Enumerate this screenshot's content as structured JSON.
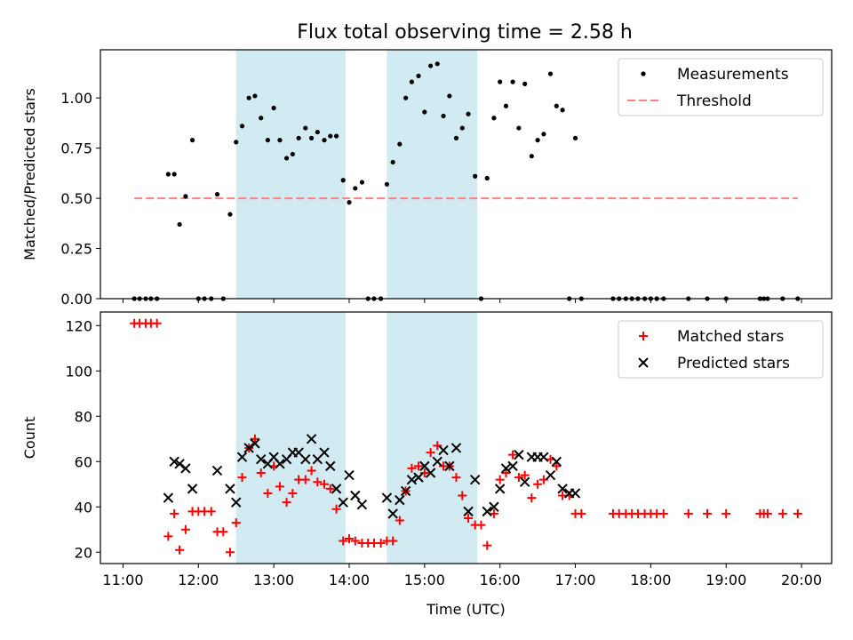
{
  "figure": {
    "title": "Flux total observing time = 2.58 h"
  },
  "chart_data": [
    {
      "type": "scatter",
      "panel": "top",
      "ylabel": "Matched/Predicted stars",
      "xlabel": "",
      "x_unit": "hours (UTC)",
      "xlim": [
        10.7,
        20.4
      ],
      "ylim": [
        0.0,
        1.24
      ],
      "yticks": [
        0.0,
        0.25,
        0.5,
        0.75,
        1.0
      ],
      "ytick_labels": [
        "0.00",
        "0.25",
        "0.50",
        "0.75",
        "1.00"
      ],
      "legend": {
        "placement": "top-right",
        "entries": [
          "Measurements",
          "Threshold"
        ]
      },
      "shaded_spans": [
        [
          12.5,
          13.95
        ],
        [
          14.5,
          15.7
        ]
      ],
      "span_color": "#add8e6",
      "threshold": {
        "name": "Threshold",
        "value": 0.5,
        "x_range": [
          11.15,
          19.95
        ],
        "color": "#ff7f7f",
        "style": "dashed"
      },
      "series": [
        {
          "name": "Measurements",
          "color": "#000000",
          "marker": "dot",
          "x": [
            11.15,
            11.22,
            11.3,
            11.37,
            11.45,
            11.6,
            11.68,
            11.75,
            11.83,
            11.92,
            12.0,
            12.08,
            12.17,
            12.25,
            12.33,
            12.42,
            12.5,
            12.58,
            12.67,
            12.75,
            12.83,
            12.92,
            13.0,
            13.08,
            13.17,
            13.25,
            13.33,
            13.42,
            13.5,
            13.58,
            13.67,
            13.75,
            13.83,
            13.92,
            14.0,
            14.08,
            14.17,
            14.25,
            14.33,
            14.42,
            14.5,
            14.58,
            14.67,
            14.75,
            14.83,
            14.92,
            15.0,
            15.08,
            15.17,
            15.25,
            15.33,
            15.42,
            15.5,
            15.58,
            15.67,
            15.75,
            15.83,
            15.92,
            16.0,
            16.08,
            16.17,
            16.25,
            16.33,
            16.42,
            16.5,
            16.58,
            16.67,
            16.75,
            16.83,
            16.92,
            17.0,
            17.08,
            17.5,
            17.58,
            17.67,
            17.75,
            17.83,
            17.92,
            18.0,
            18.08,
            18.17,
            18.5,
            18.75,
            19.0,
            19.45,
            19.5,
            19.55,
            19.75,
            19.95
          ],
          "y": [
            0,
            0,
            0,
            0,
            0,
            0.62,
            0.62,
            0.37,
            0.51,
            0.79,
            0,
            0,
            0,
            0.52,
            0,
            0.42,
            0.78,
            0.86,
            1.0,
            1.01,
            0.9,
            0.79,
            0.95,
            0.79,
            0.7,
            0.72,
            0.8,
            0.85,
            0.8,
            0.83,
            0.79,
            0.81,
            0.81,
            0.59,
            0.48,
            0.55,
            0.58,
            0,
            0,
            0,
            0.57,
            0.68,
            0.77,
            1.0,
            1.08,
            1.11,
            0.93,
            1.16,
            1.17,
            0.91,
            1.01,
            0.8,
            0.85,
            0.92,
            0.61,
            0,
            0.6,
            0.9,
            1.08,
            0.96,
            1.08,
            0.85,
            1.07,
            0.71,
            0.79,
            0.82,
            1.12,
            0.96,
            0.94,
            0,
            0.8,
            0,
            0,
            0,
            0,
            0,
            0,
            0,
            0,
            0,
            0,
            0,
            0,
            0,
            0,
            0,
            0,
            0,
            0
          ]
        }
      ]
    },
    {
      "type": "scatter",
      "panel": "bottom",
      "ylabel": "Count",
      "xlabel": "Time (UTC)",
      "x_unit": "hours (UTC)",
      "xlim": [
        10.7,
        20.4
      ],
      "ylim": [
        15,
        126
      ],
      "yticks": [
        20,
        40,
        60,
        80,
        100,
        120
      ],
      "ytick_labels": [
        "20",
        "40",
        "60",
        "80",
        "100",
        "120"
      ],
      "xticks": [
        11,
        12,
        13,
        14,
        15,
        16,
        17,
        18,
        19,
        20
      ],
      "xtick_labels": [
        "11:00",
        "12:00",
        "13:00",
        "14:00",
        "15:00",
        "16:00",
        "17:00",
        "18:00",
        "19:00",
        "20:00"
      ],
      "legend": {
        "placement": "top-right",
        "entries": [
          "Matched stars",
          "Predicted stars"
        ]
      },
      "shaded_spans": [
        [
          12.5,
          13.95
        ],
        [
          14.5,
          15.7
        ]
      ],
      "span_color": "#add8e6",
      "series": [
        {
          "name": "Matched stars",
          "color": "#ff0000",
          "marker": "plus",
          "x": [
            11.15,
            11.22,
            11.3,
            11.37,
            11.45,
            11.6,
            11.68,
            11.75,
            11.83,
            11.92,
            12.0,
            12.08,
            12.17,
            12.25,
            12.33,
            12.42,
            12.5,
            12.58,
            12.67,
            12.75,
            12.83,
            12.92,
            13.0,
            13.08,
            13.17,
            13.25,
            13.33,
            13.42,
            13.5,
            13.58,
            13.67,
            13.75,
            13.83,
            13.92,
            14.0,
            14.08,
            14.17,
            14.25,
            14.33,
            14.42,
            14.5,
            14.58,
            14.67,
            14.75,
            14.83,
            14.92,
            15.0,
            15.08,
            15.17,
            15.25,
            15.33,
            15.42,
            15.5,
            15.58,
            15.67,
            15.75,
            15.83,
            15.92,
            16.0,
            16.08,
            16.17,
            16.25,
            16.33,
            16.42,
            16.5,
            16.58,
            16.67,
            16.75,
            16.83,
            16.92,
            17.0,
            17.08,
            17.5,
            17.58,
            17.67,
            17.75,
            17.83,
            17.92,
            18.0,
            18.08,
            18.17,
            18.5,
            18.75,
            19.0,
            19.45,
            19.5,
            19.55,
            19.75,
            19.95
          ],
          "y": [
            121,
            121,
            121,
            121,
            121,
            27,
            37,
            21,
            30,
            38,
            38,
            38,
            38,
            29,
            29,
            20,
            33,
            53,
            66,
            70,
            55,
            46,
            58,
            49,
            42,
            46,
            52,
            52,
            56,
            51,
            50,
            48,
            39,
            25,
            26,
            25,
            24,
            24,
            24,
            24,
            25,
            25,
            34,
            47,
            57,
            58,
            55,
            64,
            67,
            58,
            58,
            53,
            45,
            35,
            32,
            32,
            23,
            37,
            52,
            55,
            63,
            53,
            54,
            44,
            50,
            52,
            61,
            58,
            45,
            45,
            37,
            37,
            37,
            37,
            37,
            37,
            37,
            37,
            37,
            37,
            37,
            37,
            37,
            37,
            37,
            37,
            37,
            37,
            37
          ]
        },
        {
          "name": "Predicted stars",
          "color": "#000000",
          "marker": "x",
          "x": [
            11.6,
            11.68,
            11.75,
            11.83,
            11.92,
            12.25,
            12.42,
            12.5,
            12.58,
            12.67,
            12.75,
            12.83,
            12.92,
            13.0,
            13.08,
            13.17,
            13.25,
            13.33,
            13.42,
            13.5,
            13.58,
            13.67,
            13.75,
            13.83,
            13.92,
            14.0,
            14.08,
            14.17,
            14.5,
            14.58,
            14.67,
            14.75,
            14.83,
            14.92,
            15.0,
            15.08,
            15.17,
            15.25,
            15.33,
            15.42,
            15.58,
            15.67,
            15.83,
            15.92,
            16.0,
            16.08,
            16.17,
            16.25,
            16.33,
            16.42,
            16.5,
            16.58,
            16.67,
            16.75,
            16.83,
            16.92,
            17.0
          ],
          "y": [
            44,
            60,
            59,
            57,
            48,
            56,
            48,
            42,
            62,
            66,
            68,
            61,
            59,
            62,
            59,
            61,
            64,
            64,
            61,
            70,
            61,
            64,
            58,
            48,
            42,
            54,
            45,
            41,
            44,
            37,
            43,
            47,
            52,
            53,
            58,
            55,
            60,
            65,
            58,
            66,
            38,
            52,
            38,
            40,
            48,
            57,
            58,
            63,
            51,
            62,
            62,
            62,
            54,
            60,
            48,
            46,
            46
          ]
        }
      ]
    }
  ]
}
